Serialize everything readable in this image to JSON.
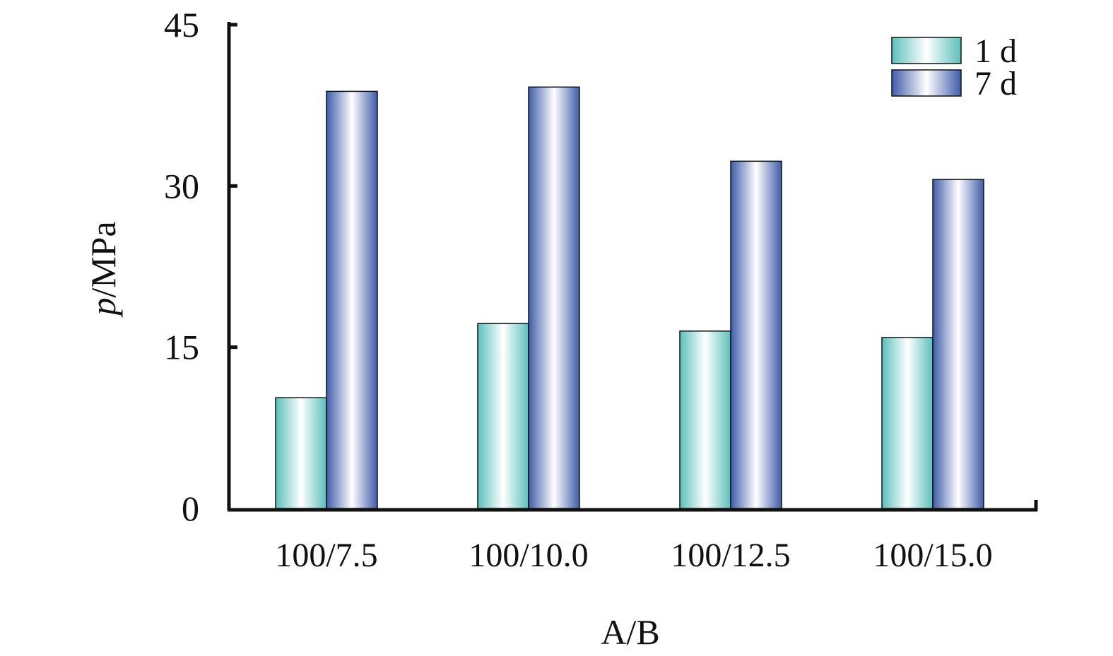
{
  "chart_data": {
    "type": "bar",
    "categories": [
      "100/7.5",
      "100/10.0",
      "100/12.5",
      "100/15.0"
    ],
    "series": [
      {
        "name": "1 d",
        "values": [
          10.3,
          17.2,
          16.5,
          15.9
        ]
      },
      {
        "name": "7 d",
        "values": [
          38.8,
          39.2,
          32.3,
          30.6
        ]
      }
    ],
    "xlabel": "A/B",
    "ylabel_italic": "p",
    "ylabel_rest": "/MPa",
    "ylim": [
      0,
      45
    ],
    "yticks": [
      "0",
      "15",
      "30",
      "45"
    ],
    "grid": false,
    "legend_position": "top-right"
  },
  "colors": {
    "series_1d": "#5bbfbb",
    "series_7d": "#3f5caa",
    "axis": "#111111"
  }
}
